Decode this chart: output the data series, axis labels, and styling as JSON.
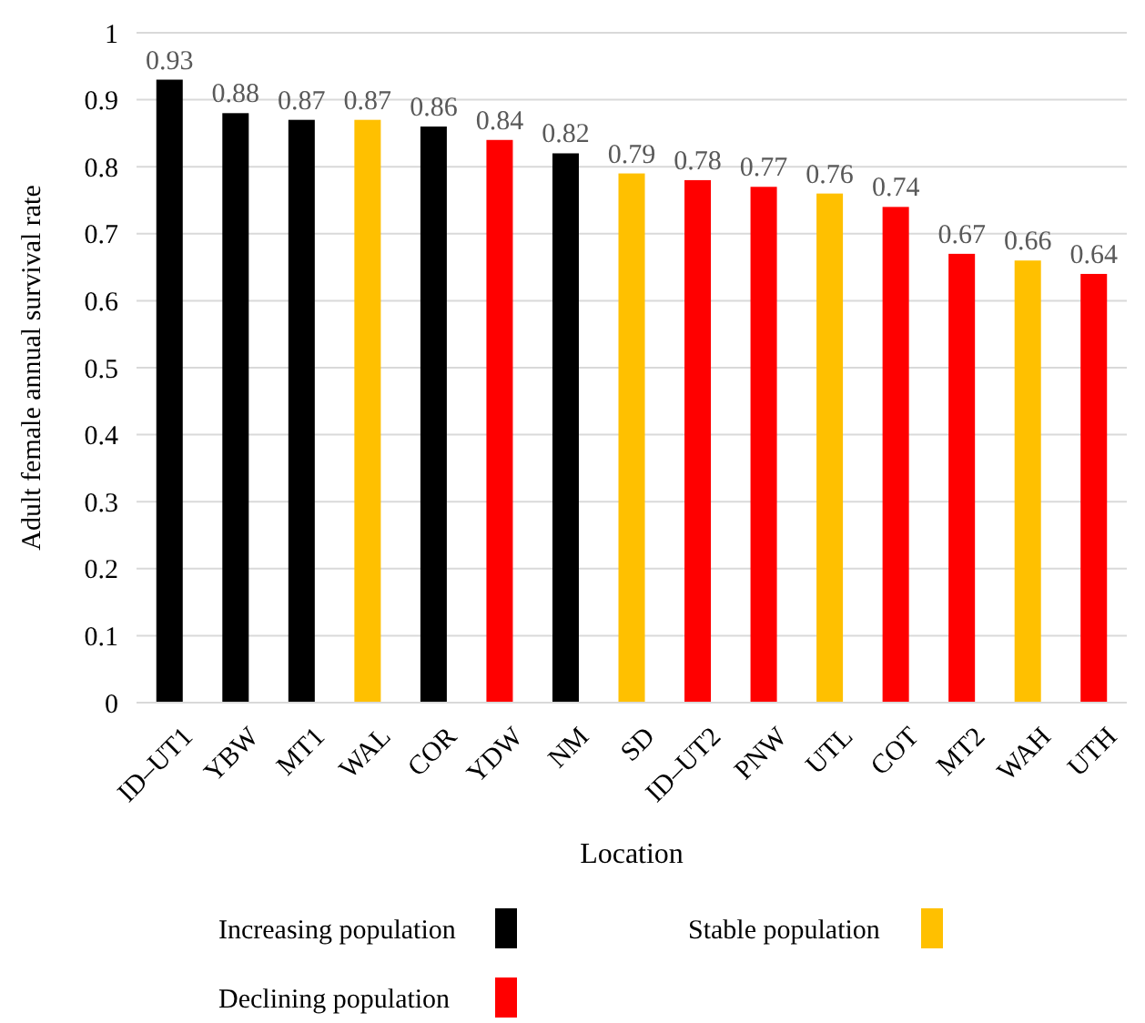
{
  "chart_data": {
    "type": "bar",
    "xlabel": "Location",
    "ylabel": "Adult female annual survival rate",
    "categories": [
      "ID–UT1",
      "YBW",
      "MT1",
      "WAL",
      "COR",
      "YDW",
      "NM",
      "SD",
      "ID–UT2",
      "PNW",
      "UTL",
      "COT",
      "MT2",
      "WAH",
      "UTH"
    ],
    "series": [
      {
        "name": "Increasing population",
        "color": "#000000",
        "values": [
          0.93,
          0.88,
          0.87,
          null,
          0.86,
          null,
          0.82,
          null,
          null,
          null,
          null,
          null,
          null,
          null,
          null
        ]
      },
      {
        "name": "Stable population",
        "color": "#ffc000",
        "values": [
          null,
          null,
          null,
          0.87,
          null,
          null,
          null,
          0.79,
          null,
          null,
          0.76,
          null,
          null,
          0.66,
          null
        ]
      },
      {
        "name": "Declining population",
        "color": "#ff0000",
        "values": [
          null,
          null,
          null,
          null,
          null,
          0.84,
          null,
          null,
          0.78,
          0.77,
          null,
          0.74,
          0.67,
          null,
          0.64
        ]
      }
    ],
    "ylim": [
      0,
      1
    ],
    "yticks": [
      0,
      0.1,
      0.2,
      0.3,
      0.4,
      0.5,
      0.6,
      0.7,
      0.8,
      0.9,
      1
    ],
    "grid": "y",
    "data_labels": true,
    "legend": "bottom"
  }
}
